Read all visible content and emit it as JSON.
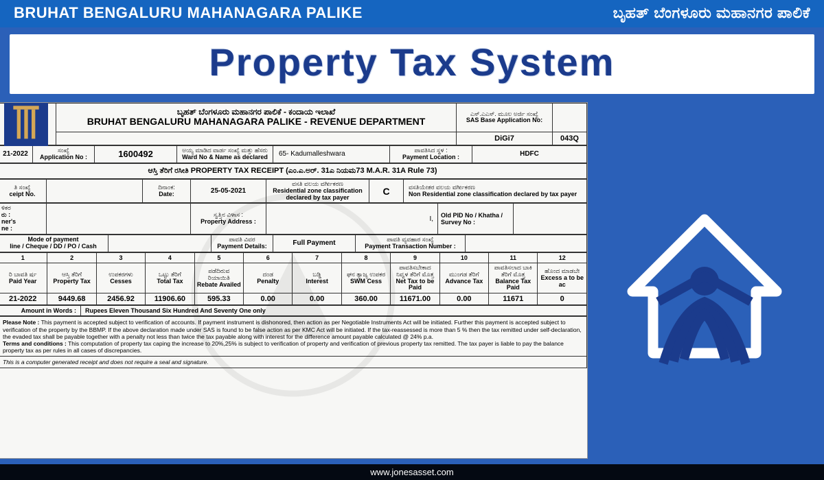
{
  "banner": {
    "org_en": "BRUHAT BENGALURU MAHANAGARA PALIKE",
    "org_kn": "ಬೃಹತ್ ಬೆಂಗಳೂರು ಮಹಾನಗರ ಪಾಲಿಕೆ",
    "system_title": "Property Tax System"
  },
  "colors": {
    "banner_bg": "#1565c0",
    "page_bg": "#2b60b8",
    "title_text": "#1b3b8c",
    "paper_bg": "#f7f7f5",
    "border": "#333333"
  },
  "receipt": {
    "dept_header_kn": "ಬೃಹತ್ ಬೆಂಗಳೂರು ಮಹಾನಗರ ಪಾಲಿಕೆ - ಕಂದಾಯ ಇಲಾಖೆ",
    "dept_header_en": "BRUHAT BENGALURU MAHANAGARA PALIKE - REVENUE DEPARTMENT",
    "sas_label_kn": "ಎಸ್.ಎಎಸ್. ಮೂಲ ಅರ್ಜಿ ಸಂಖ್ಯೆ",
    "sas_label_en": "SAS Base Application No:",
    "sas_value": "",
    "digi_label": "DiGi7",
    "digi_value": "043Q",
    "year_label_en": "",
    "year_value": "21-2022",
    "app_no_label_kn": "ಸಂಖ್ಯೆ",
    "app_no_label_en": "Application No :",
    "app_no_value": "1600492",
    "ward_label_kn": "ಅಯ್ಯ ಮಾಡಿದ ವಾರ್ಡ ಸಂಖ್ಯೆ ಮತ್ತು ಹೆಸರು",
    "ward_label_en": "Ward No & Name as declared",
    "ward_value": "65- Kadumalleshwara",
    "pay_loc_label_kn": "ಪಾವತಿಸಿದ ಸ್ಥಳ :",
    "pay_loc_label_en": "Payment Location :",
    "pay_loc_value": "HDFC",
    "receipt_title": "ಆಸ್ತಿ ತೆರಿಗೆ ರಸೀತಿ PROPERTY TAX RECEIPT (ಎಂ.ಎ.ಅರ್. 31ಎ ನಿಯಮ73 M.A.R. 31A Rule 73)",
    "rcpt_no_label_kn": "ತಿ ಸಂಖ್ಯೆ",
    "rcpt_no_label_en": "ceipt No.",
    "rcpt_no_value": "",
    "date_label_kn": "ದಿನಾಂಕ:",
    "date_label_en": "Date:",
    "date_value": "25-05-2021",
    "res_zone_label_kn": "ವಸತಿ ವಲಯ ವರ್ಗೀಕರಣ",
    "res_zone_label_en": "Residential zone classification declared by tax payer",
    "res_zone_value": "C",
    "nonres_zone_label_kn": "ವಸತಿಯೇತರ ವಲಯ ವರ್ಗೀಕರಣ",
    "nonres_zone_label_en": "Non Residential zone classification declared by tax payer",
    "nonres_zone_value": "",
    "owner_label_kn": "ಳಿಕರ",
    "owner_label_en1": "ರು :",
    "owner_label_en2": "ner's",
    "owner_label_en3": "ne :",
    "prop_addr_label_kn": "ಸ್ವತ್ತಿನ ವಿಳಾಸ :",
    "prop_addr_label_en": "Property Address :",
    "prop_addr_value": "I,",
    "old_pid_label": "Old PID No / Khatha / Survey No :",
    "old_pid_value": "",
    "mode_label_en": "Mode of payment",
    "mode_label_sub": "line / Cheque / DD / PO / Cash",
    "mode_value": "",
    "pay_det_label_kn": "ಪಾವತಿ ವಿವರ",
    "pay_det_label_en": "Payment Details:",
    "pay_det_value": "Full Payment",
    "pay_txn_label_kn": "ಪಾವತಿ ವ್ಯವಹಾರ ಸಂಖ್ಯೆ",
    "pay_txn_label_en": "Payment Transaction Number :",
    "pay_txn_value": "",
    "cols": {
      "nums": [
        "1",
        "2",
        "3",
        "4",
        "5",
        "6",
        "7",
        "8",
        "9",
        "10",
        "11",
        "12"
      ],
      "kn": [
        "ರಿ ಬಾವತಿ ರ್ಷ",
        "ಆಸ್ತಿ ತೆರಿಗೆ",
        "ಉಪಕರಗಳು",
        "ಒಟ್ಟು ತೆರಿಗೆ",
        "ಪಡೆದಿರುವ ರಿಯಾಯಿತಿ",
        "ದಂಡ",
        "ಬಡ್ಡಿ",
        "ಘನ ತ್ಯಾಜ್ಯ ಉಪಕರ",
        "ಪಾವತಿಸಬೇಕಾದ ನಿವ್ವಳ ತೆರಿಗೆ ಮೊತ್ತ",
        "ಮುಂಗಡ ತೆರಿಗೆ",
        "ಪಾವತಿಸಲಾದ ಬಾಕಿ ತೆರಿಗೆ ಮೊತ್ತ",
        "ಹೊಂದ ಮಾಡಬೇ"
      ],
      "en": [
        "Paid Year",
        "Property Tax",
        "Cesses",
        "Total Tax",
        "Rebate Availed",
        "Penalty",
        "Interest",
        "SWM Cess",
        "Net Tax to be Paid",
        "Advance Tax",
        "Balance Tax Paid",
        "Excess a to be ac"
      ]
    },
    "row": [
      "21-2022",
      "9449.68",
      "2456.92",
      "11906.60",
      "595.33",
      "0.00",
      "0.00",
      "360.00",
      "11671.00",
      "0.00",
      "11671",
      "0"
    ],
    "amt_words_label": "Amount in Words :",
    "amt_words_value": "Rupees Eleven Thousand Six Hundred And Seventy One  only",
    "note_label": "Please Note :",
    "note_text": "This payment is accepted subject to verification of accounts. If payment instrument is dishonored, then action as per Negotiable Instruments Act will be initiated. Further this payment is accepted subject to verification of the property by the BBMP. If the above declaration made under SAS is found to be false action as per KMC Act will be initiated. If the tax-reassessed is more than 5 % then the tax remitted under self-declaration, the evaded tax shall be payable together with a penalty not less than twice the tax payable along with interest for the difference amount payable calculated @ 24% p.a.",
    "terms_label": "Terms and conditions :",
    "terms_text": "This computation of property tax caping the increase to 20%,25% is subject to verification of property and verification of previous property tax remitted. The tax payer is liable to pay the balance property tax as per rules in all cases of discrepancies.",
    "footer_italic": "This is a computer generated receipt and does not require a seal and signature."
  },
  "footer": {
    "url": "www.jonesasset.com"
  }
}
